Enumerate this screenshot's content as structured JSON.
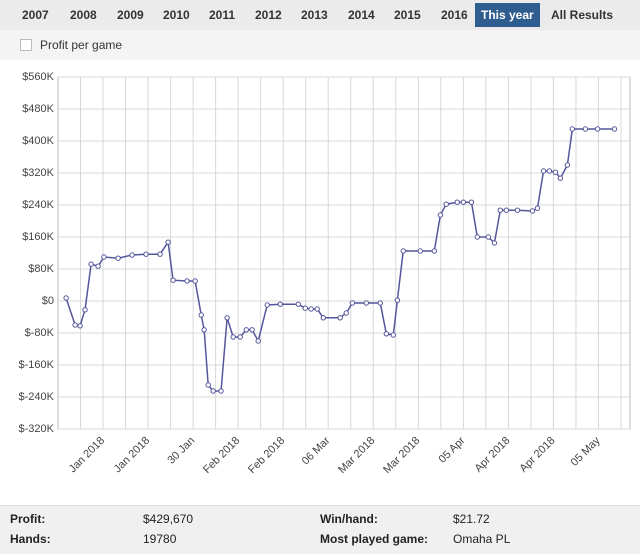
{
  "tabs": [
    {
      "label": "2007"
    },
    {
      "label": "2008"
    },
    {
      "label": "2009"
    },
    {
      "label": "2010"
    },
    {
      "label": "2011"
    },
    {
      "label": "2012"
    },
    {
      "label": "2013"
    },
    {
      "label": "2014"
    },
    {
      "label": "2015"
    },
    {
      "label": "2016"
    },
    {
      "label": "This year",
      "active": true
    },
    {
      "label": "All Results"
    }
  ],
  "checkbox_label": "Profit per game",
  "chart_data": {
    "type": "line",
    "grid": true,
    "x": [
      0.36,
      0.76,
      0.98,
      1.2,
      1.47,
      1.78,
      2.04,
      2.67,
      3.29,
      3.91,
      4.53,
      4.89,
      5.11,
      5.73,
      6.09,
      6.36,
      6.49,
      6.67,
      6.89,
      7.24,
      7.51,
      7.78,
      8.09,
      8.36,
      8.62,
      8.89,
      9.29,
      9.87,
      10.67,
      10.98,
      11.24,
      11.51,
      11.78,
      12.53,
      12.8,
      13.07,
      13.69,
      14.31,
      14.58,
      14.89,
      15.07,
      15.33,
      16.09,
      16.71,
      16.98,
      17.24,
      17.73,
      18.0,
      18.36,
      18.62,
      19.11,
      19.38,
      19.64,
      19.91,
      20.4,
      21.07,
      21.29,
      21.56,
      21.82,
      22.09,
      22.31,
      22.62,
      22.84,
      23.42,
      23.96,
      24.71
    ],
    "series": [
      {
        "color": "#55559c",
        "values": [
          7500,
          -60000,
          -62000,
          -22000,
          92000,
          87000,
          110000,
          107000,
          115000,
          117000,
          117000,
          147000,
          52000,
          50000,
          50000,
          -35000,
          -72000,
          -210000,
          -225000,
          -225000,
          -42000,
          -90000,
          -90000,
          -72000,
          -72000,
          -100000,
          -10000,
          -8000,
          -8000,
          -18000,
          -20000,
          -20000,
          -42000,
          -42000,
          -30000,
          -5000,
          -5000,
          -5000,
          -82000,
          -85000,
          2000,
          125000,
          125000,
          125000,
          215000,
          242000,
          247000,
          247000,
          247000,
          160000,
          160000,
          145000,
          227000,
          227000,
          227000,
          225000,
          232000,
          325000,
          325000,
          322000,
          307000,
          340000,
          430000,
          430000,
          430000,
          430000
        ]
      }
    ],
    "xlim": [
      0,
      25.4
    ],
    "xticks": [
      {
        "value": 2,
        "label": "Jan 2018"
      },
      {
        "value": 4,
        "label": "Jan 2018"
      },
      {
        "value": 6,
        "label": "30 Jan"
      },
      {
        "value": 8,
        "label": "Feb 2018"
      },
      {
        "value": 10,
        "label": "Feb 2018"
      },
      {
        "value": 12,
        "label": "06 Mar"
      },
      {
        "value": 14,
        "label": "Mar 2018"
      },
      {
        "value": 16,
        "label": "Mar 2018"
      },
      {
        "value": 18,
        "label": "05 Apr"
      },
      {
        "value": 20,
        "label": "Apr 2018"
      },
      {
        "value": 22,
        "label": "Apr 2018"
      },
      {
        "value": 24,
        "label": "05 May"
      }
    ],
    "xminorticks": [
      1,
      3,
      5,
      7,
      9,
      11,
      13,
      15,
      17,
      19,
      21,
      23,
      25
    ],
    "ylim": [
      -320000,
      560000
    ],
    "yticks": [
      {
        "value": -320000,
        "label": "$-320K"
      },
      {
        "value": -240000,
        "label": "$-240K"
      },
      {
        "value": -160000,
        "label": "$-160K"
      },
      {
        "value": -80000,
        "label": "$-80K"
      },
      {
        "value": 0,
        "label": "$0"
      },
      {
        "value": 80000,
        "label": "$80K"
      },
      {
        "value": 160000,
        "label": "$160K"
      },
      {
        "value": 240000,
        "label": "$240K"
      },
      {
        "value": 320000,
        "label": "$320K"
      },
      {
        "value": 400000,
        "label": "$400K"
      },
      {
        "value": 480000,
        "label": "$480K"
      },
      {
        "value": 560000,
        "label": "$560K"
      }
    ]
  },
  "stats": [
    [
      "Profit:",
      "$429,670",
      "Win/hand:",
      "$21.72"
    ],
    [
      "Hands:",
      "19780",
      "Most played game:",
      "Omaha PL"
    ]
  ]
}
